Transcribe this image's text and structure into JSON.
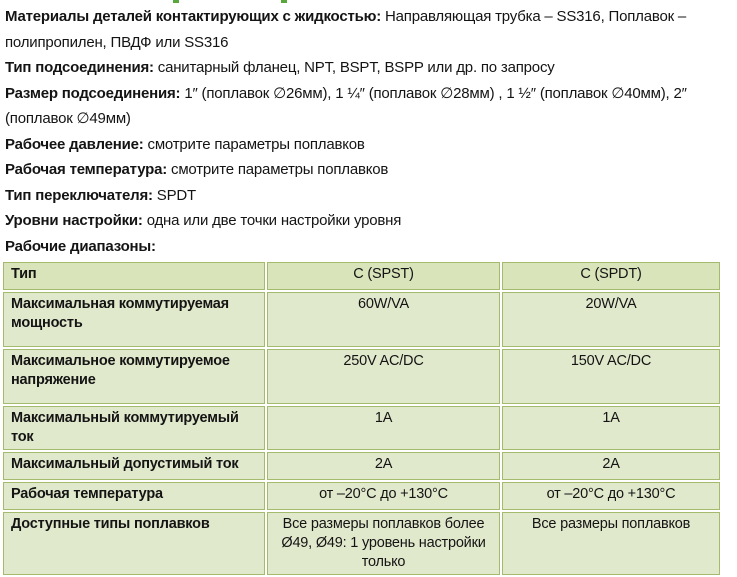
{
  "specs": [
    {
      "label": "Материалы деталей контактирующих с жидкостью:",
      "value": "Направляющая трубка – SS316, Поплавок – полипропилен, ПВДФ или SS316"
    },
    {
      "label": "Тип подсоединения:",
      "value": "санитарный фланец, NPT, BSPT, BSPP или др. по запросу"
    },
    {
      "label": "Размер подсоединения:",
      "value": "1″ (поплавок ∅26мм), 1 ¼″ (поплавок ∅28мм) , 1 ½″ (поплавок ∅40мм), 2″ (поплавок ∅49мм)"
    },
    {
      "label": "Рабочее давление:",
      "value": "смотрите параметры поплавков"
    },
    {
      "label": "Рабочая температура:",
      "value": "смотрите параметры поплавков"
    },
    {
      "label": "Тип переключателя:",
      "value": "SPDT"
    },
    {
      "label": "Уровни настройки:",
      "value": "одна или две точки настройки уровня"
    },
    {
      "label": "Рабочие диапазоны:",
      "value": ""
    }
  ],
  "table": {
    "header": [
      "Тип",
      "C (SPST)",
      "C (SPDT)"
    ],
    "rows": [
      [
        "Максимальная коммутируемая мощность",
        "60W/VA",
        "20W/VA"
      ],
      [
        "Максимальное коммутируемое напряжение",
        "250V AC/DC",
        "150V AC/DC"
      ],
      [
        "Максимальный коммутируемый ток",
        "1A",
        "1A"
      ],
      [
        "Максимальный допустимый ток",
        "2A",
        "2A"
      ],
      [
        "Рабочая температура",
        "от –20°C до +130°C",
        "от –20°C до +130°C"
      ],
      [
        "Доступные типы поплавков",
        "Все размеры поплавков более Ø49, Ø49: 1 уровень настройки только",
        "Все размеры поплавков"
      ]
    ]
  },
  "colors": {
    "cell_background": "#e1e9cc",
    "header_background": "#d9e4ba",
    "table_border": "#a4ba6c",
    "text": "#141414",
    "cropped_heading_green": "#57a73d"
  }
}
